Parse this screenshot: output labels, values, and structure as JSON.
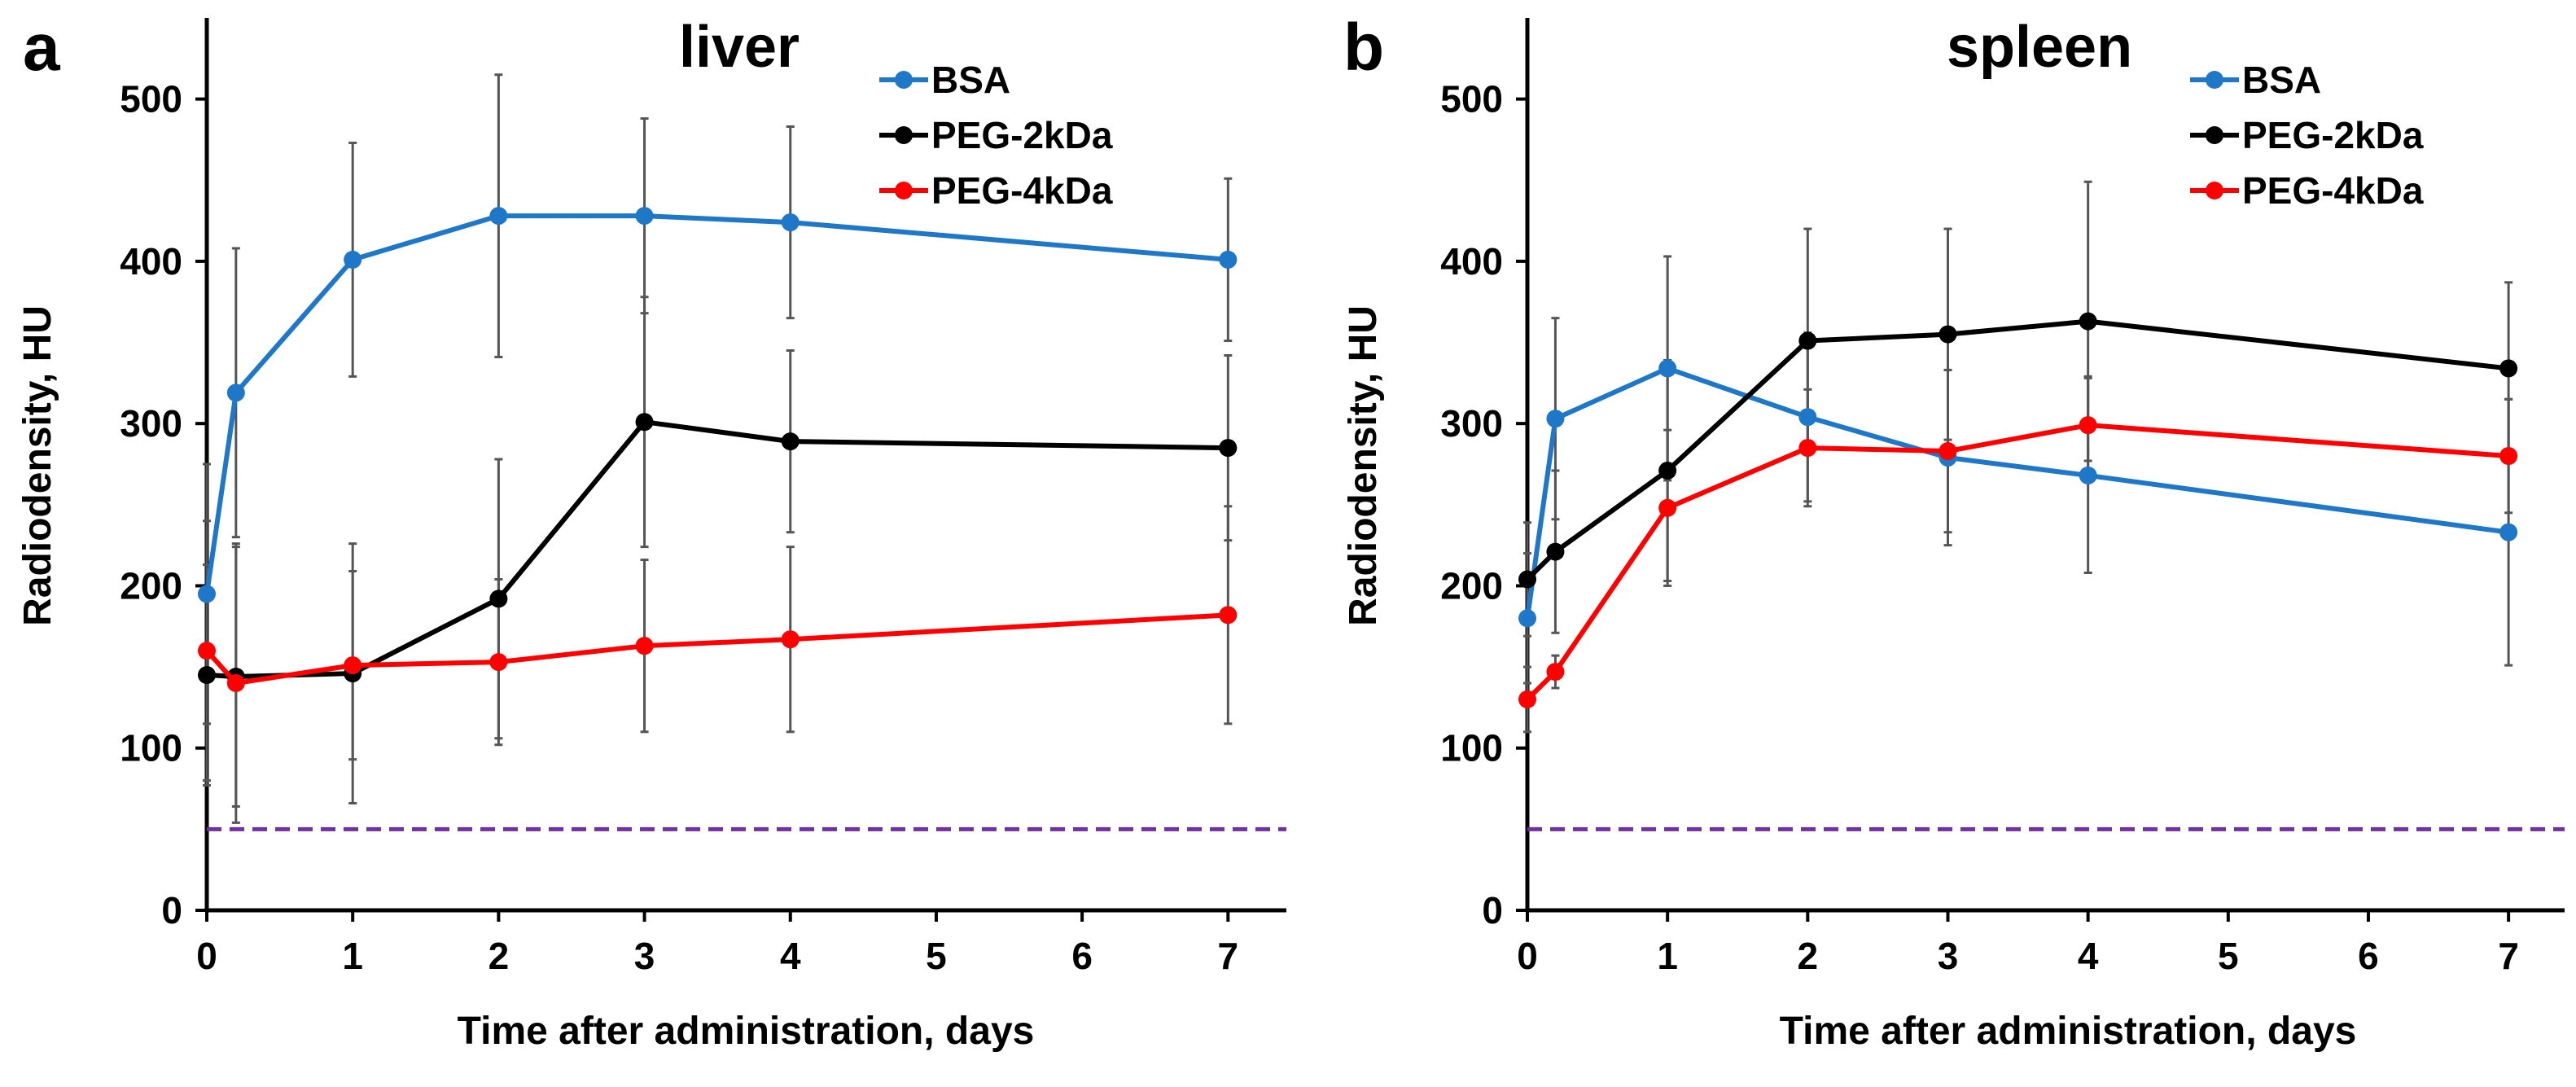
{
  "chart_data": [
    {
      "panel_label": "a",
      "type": "line",
      "title": "liver",
      "xlabel": "Time after administration, days",
      "ylabel": "Radiodensity, HU",
      "xlim": [
        0,
        7.4
      ],
      "ylim": [
        0,
        550
      ],
      "xticks": [
        0,
        1,
        2,
        3,
        4,
        5,
        6,
        7
      ],
      "yticks": [
        0,
        100,
        200,
        300,
        400,
        500
      ],
      "grid": false,
      "legend": "top-right",
      "reference_line": {
        "y": 50,
        "color": "#7030A0",
        "style": "dashed"
      },
      "series": [
        {
          "name": "BSA",
          "color": "#1F77C8",
          "x": [
            0,
            0.2,
            1,
            2,
            3,
            4,
            7
          ],
          "y": [
            195,
            319,
            401,
            428,
            428,
            424,
            401
          ],
          "err": [
            80,
            89,
            72,
            87,
            60,
            59,
            50
          ]
        },
        {
          "name": "PEG-2kDa",
          "color": "#000000",
          "x": [
            0,
            0.2,
            1,
            2,
            3,
            4,
            7
          ],
          "y": [
            145,
            144,
            146,
            192,
            301,
            289,
            285
          ],
          "err": [
            68,
            80,
            80,
            86,
            77,
            56,
            57
          ]
        },
        {
          "name": "PEG-4kDa",
          "color": "#FF0000",
          "x": [
            0,
            0.2,
            1,
            2,
            3,
            4,
            7
          ],
          "y": [
            160,
            140,
            151,
            153,
            163,
            167,
            182
          ],
          "err": [
            80,
            86,
            58,
            51,
            53,
            57,
            67
          ]
        }
      ]
    },
    {
      "panel_label": "b",
      "type": "line",
      "title": "spleen",
      "xlabel": "Time after administration, days",
      "ylabel": "Radiodensity, HU",
      "xlim": [
        0,
        7.4
      ],
      "ylim": [
        0,
        550
      ],
      "xticks": [
        0,
        1,
        2,
        3,
        4,
        5,
        6,
        7
      ],
      "yticks": [
        0,
        100,
        200,
        300,
        400,
        500
      ],
      "grid": false,
      "legend": "top-right",
      "reference_line": {
        "y": 50,
        "color": "#7030A0",
        "style": "dashed"
      },
      "series": [
        {
          "name": "BSA",
          "color": "#1F77C8",
          "x": [
            0,
            0.2,
            1,
            2,
            3,
            4,
            7
          ],
          "y": [
            180,
            303,
            334,
            304,
            279,
            268,
            233
          ],
          "err": [
            40,
            62,
            69,
            52,
            54,
            60,
            82
          ]
        },
        {
          "name": "PEG-2kDa",
          "color": "#000000",
          "x": [
            0,
            0.2,
            1,
            2,
            3,
            4,
            7
          ],
          "y": [
            204,
            221,
            271,
            351,
            355,
            363,
            334
          ],
          "err": [
            35,
            50,
            68,
            69,
            65,
            86,
            53
          ]
        },
        {
          "name": "PEG-4kDa",
          "color": "#FF0000",
          "x": [
            0,
            0.2,
            1,
            2,
            3,
            4,
            7
          ],
          "y": [
            130,
            147,
            248,
            285,
            283,
            299,
            280
          ],
          "err": [
            20,
            10,
            48,
            36,
            50,
            30,
            35
          ]
        }
      ]
    }
  ]
}
